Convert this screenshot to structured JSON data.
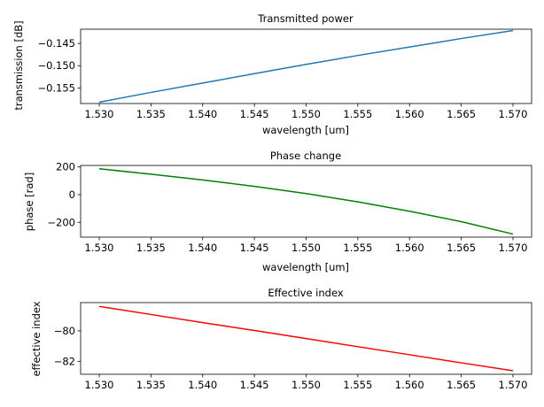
{
  "chart_data": [
    {
      "type": "line",
      "title": "Transmitted power",
      "xlabel": "wavelength [um]",
      "ylabel": "transmission [dB]",
      "xlim": [
        1.5282,
        1.5718
      ],
      "ylim": [
        -0.1585,
        -0.1418
      ],
      "xticks": [
        1.53,
        1.535,
        1.54,
        1.545,
        1.55,
        1.555,
        1.56,
        1.565,
        1.57
      ],
      "xtick_labels": [
        "1.530",
        "1.535",
        "1.540",
        "1.545",
        "1.550",
        "1.555",
        "1.560",
        "1.565",
        "1.570"
      ],
      "yticks": [
        -0.155,
        -0.15,
        -0.145
      ],
      "ytick_labels": [
        "−0.155",
        "−0.150",
        "−0.145"
      ],
      "series": [
        {
          "name": "transmission",
          "color": "#1f77b4",
          "x": [
            1.53,
            1.535,
            1.54,
            1.545,
            1.55,
            1.555,
            1.56,
            1.565,
            1.57
          ],
          "y": [
            -0.1582,
            -0.156,
            -0.1539,
            -0.1518,
            -0.1497,
            -0.1477,
            -0.1458,
            -0.1439,
            -0.1421
          ]
        }
      ]
    },
    {
      "type": "line",
      "title": "Phase change",
      "xlabel": "wavelength [um]",
      "ylabel": "phase [rad]",
      "xlim": [
        1.5282,
        1.5718
      ],
      "ylim": [
        -307,
        211
      ],
      "xticks": [
        1.53,
        1.535,
        1.54,
        1.545,
        1.55,
        1.555,
        1.56,
        1.565,
        1.57
      ],
      "xtick_labels": [
        "1.530",
        "1.535",
        "1.540",
        "1.545",
        "1.550",
        "1.555",
        "1.560",
        "1.565",
        "1.570"
      ],
      "yticks": [
        -200,
        0,
        200
      ],
      "ytick_labels": [
        "−200",
        "0",
        "200"
      ],
      "series": [
        {
          "name": "phase",
          "color": "#008000",
          "x": [
            1.53,
            1.535,
            1.54,
            1.545,
            1.55,
            1.555,
            1.56,
            1.565,
            1.57
          ],
          "y": [
            187,
            148,
            106,
            60,
            8,
            -52,
            -120,
            -195,
            -285
          ]
        }
      ]
    },
    {
      "type": "line",
      "title": "Effective index",
      "xlabel": "",
      "ylabel": "effective index",
      "xlim": [
        1.5282,
        1.5718
      ],
      "ylim": [
        -82.85,
        -78.15
      ],
      "xticks": [
        1.53,
        1.535,
        1.54,
        1.545,
        1.55,
        1.555,
        1.56,
        1.565,
        1.57
      ],
      "xtick_labels": [
        "1.530",
        "1.535",
        "1.540",
        "1.545",
        "1.550",
        "1.555",
        "1.560",
        "1.565",
        "1.570"
      ],
      "yticks": [
        -82,
        -80
      ],
      "ytick_labels": [
        "−82",
        "−80"
      ],
      "series": [
        {
          "name": "effective index",
          "color": "#ff0000",
          "x": [
            1.53,
            1.535,
            1.54,
            1.545,
            1.55,
            1.555,
            1.56,
            1.565,
            1.57
          ],
          "y": [
            -78.4,
            -78.93,
            -79.46,
            -79.98,
            -80.51,
            -81.04,
            -81.57,
            -82.1,
            -82.62
          ]
        }
      ]
    }
  ]
}
